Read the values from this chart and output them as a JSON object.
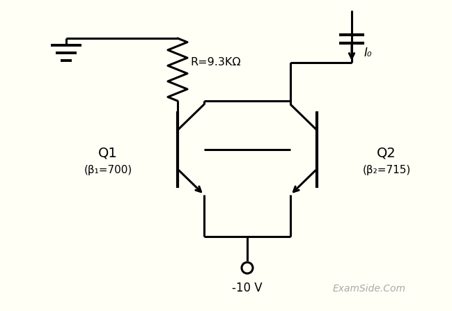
{
  "bg_color": "#fffff5",
  "line_color": "#000000",
  "watermark_color": "#aaaaaa",
  "q1_label": "Q1",
  "q1_beta": "(β₁=700)",
  "q2_label": "Q2",
  "q2_beta": "(β₂=715)",
  "r_label": "R=9.3KΩ",
  "v_label": "-10 V",
  "i_label": "I₀",
  "watermark": "ExamSide.Com",
  "lw": 2.2
}
